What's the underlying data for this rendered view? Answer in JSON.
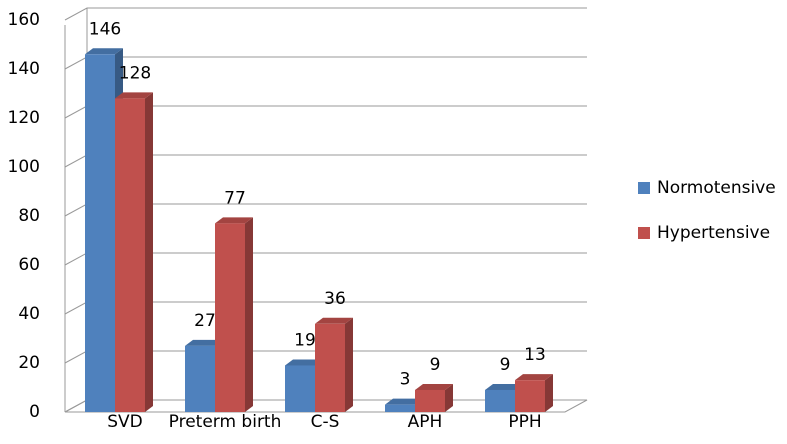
{
  "chart_data": {
    "type": "bar3d",
    "categories": [
      "SVD",
      "Preterm birth",
      "C-S",
      "APH",
      "PPH"
    ],
    "series": [
      {
        "name": "Normotensive",
        "color": "#4f81bd",
        "values": [
          146,
          27,
          19,
          3,
          9
        ]
      },
      {
        "name": "Hypertensive",
        "color": "#c0504d",
        "values": [
          128,
          77,
          36,
          9,
          13
        ]
      }
    ],
    "ylim": [
      0,
      160
    ],
    "yticks": [
      0,
      20,
      40,
      60,
      80,
      100,
      120,
      140,
      160
    ],
    "grid": true,
    "legend": "right"
  }
}
